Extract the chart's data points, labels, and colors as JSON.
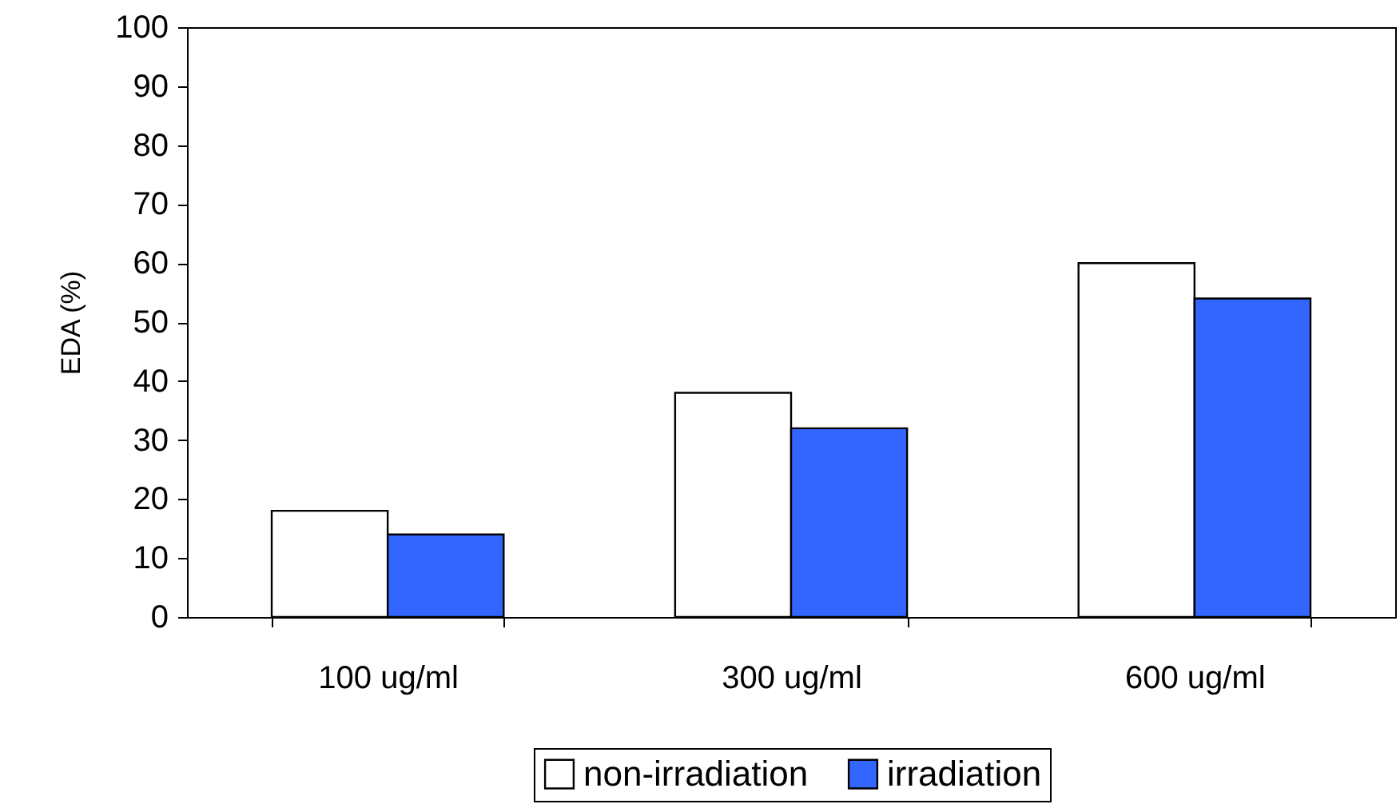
{
  "chart_data": {
    "type": "bar",
    "ylabel": "EDA (%)",
    "categories": [
      "100 ug/ml",
      "300 ug/ml",
      "600 ug/ml"
    ],
    "series": [
      {
        "name": "non-irradiation",
        "color": "#ffffff",
        "values": [
          18,
          38,
          60
        ]
      },
      {
        "name": "irradiation",
        "color": "#3366ff",
        "values": [
          14,
          32,
          54
        ]
      }
    ],
    "ylim": [
      0,
      100
    ],
    "yticks": [
      0,
      10,
      20,
      30,
      40,
      50,
      60,
      70,
      80,
      90,
      100
    ],
    "grid": false,
    "legend": "bottom"
  }
}
